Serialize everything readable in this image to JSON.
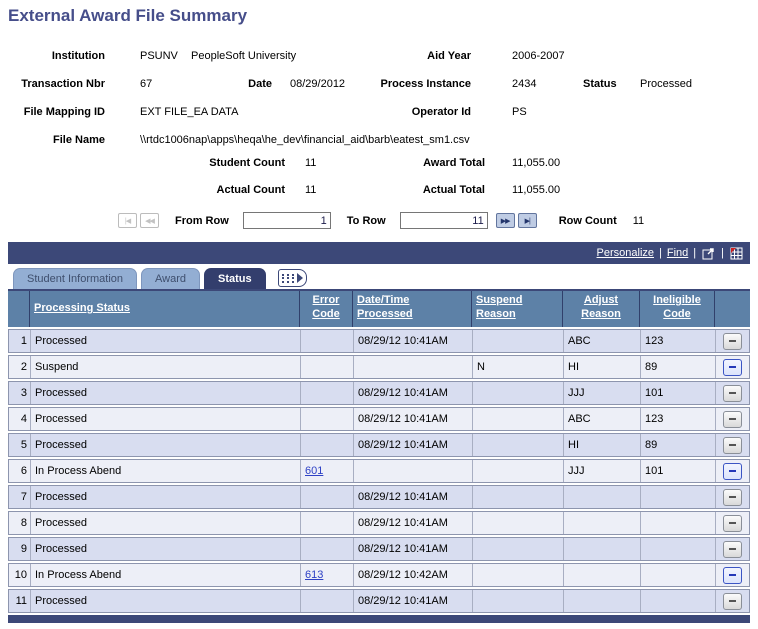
{
  "page": {
    "title": "External Award File Summary"
  },
  "header_fields": {
    "institution_label": "Institution",
    "institution_code": "PSUNV",
    "institution_name": "PeopleSoft University",
    "aid_year_label": "Aid Year",
    "aid_year": "2006-2007",
    "transaction_nbr_label": "Transaction Nbr",
    "transaction_nbr": "67",
    "date_label": "Date",
    "date": "08/29/2012",
    "process_instance_label": "Process Instance",
    "process_instance": "2434",
    "status_label": "Status",
    "status": "Processed",
    "file_mapping_id_label": "File Mapping ID",
    "file_mapping_id": "EXT FILE_EA DATA",
    "operator_id_label": "Operator Id",
    "operator_id": "PS",
    "file_name_label": "File Name",
    "file_name": "\\\\rtdc1006nap\\apps\\heqa\\he_dev\\financial_aid\\barb\\eatest_sm1.csv"
  },
  "totals": {
    "student_count_label": "Student Count",
    "student_count": "11",
    "award_total_label": "Award Total",
    "award_total": "11,055.00",
    "actual_count_label": "Actual Count",
    "actual_count": "11",
    "actual_total_label": "Actual Total",
    "actual_total": "11,055.00"
  },
  "pagination": {
    "from_row_label": "From Row",
    "from_row_value": "1",
    "to_row_label": "To Row",
    "to_row_value": "11",
    "row_count_label": "Row Count",
    "row_count": "11"
  },
  "icons": {
    "first_page_glyph": "|◀",
    "previous_page_glyph": "◀◀",
    "next_page_glyph": "▶▶",
    "last_page_glyph": "▶|",
    "toolbar_separator": "|",
    "delete_row": "minus-icon",
    "view_popup": "open-in-new-window-icon",
    "download_grid": "download-grid-icon",
    "show_all_columns": "show-all-columns-icon"
  },
  "grid": {
    "toolbar": {
      "personalize": "Personalize",
      "find": "Find"
    },
    "tabs": [
      {
        "label": "Student Information",
        "active": false
      },
      {
        "label": "Award",
        "active": false
      },
      {
        "label": "Status",
        "active": true
      }
    ],
    "columns": [
      "Processing Status",
      "Error Code",
      "Date/Time Processed",
      "Suspend Reason",
      "Adjust Reason",
      "Ineligible Code"
    ],
    "rows": [
      {
        "num": "1",
        "processing_status": "Processed",
        "error_code": "",
        "date_time": "08/29/12 10:41AM",
        "suspend_reason": "",
        "adjust_reason": "ABC",
        "ineligible_code": "123",
        "highlight": false
      },
      {
        "num": "2",
        "processing_status": "Suspend",
        "error_code": "",
        "date_time": "",
        "suspend_reason": "N",
        "adjust_reason": "HI",
        "ineligible_code": "89",
        "highlight": true
      },
      {
        "num": "3",
        "processing_status": "Processed",
        "error_code": "",
        "date_time": "08/29/12 10:41AM",
        "suspend_reason": "",
        "adjust_reason": "JJJ",
        "ineligible_code": "101",
        "highlight": false
      },
      {
        "num": "4",
        "processing_status": "Processed",
        "error_code": "",
        "date_time": "08/29/12 10:41AM",
        "suspend_reason": "",
        "adjust_reason": "ABC",
        "ineligible_code": "123",
        "highlight": false
      },
      {
        "num": "5",
        "processing_status": "Processed",
        "error_code": "",
        "date_time": "08/29/12 10:41AM",
        "suspend_reason": "",
        "adjust_reason": "HI",
        "ineligible_code": "89",
        "highlight": false
      },
      {
        "num": "6",
        "processing_status": "In Process Abend",
        "error_code": "601",
        "date_time": "",
        "suspend_reason": "",
        "adjust_reason": "JJJ",
        "ineligible_code": "101",
        "highlight": true
      },
      {
        "num": "7",
        "processing_status": "Processed",
        "error_code": "",
        "date_time": "08/29/12 10:41AM",
        "suspend_reason": "",
        "adjust_reason": "",
        "ineligible_code": "",
        "highlight": false
      },
      {
        "num": "8",
        "processing_status": "Processed",
        "error_code": "",
        "date_time": "08/29/12 10:41AM",
        "suspend_reason": "",
        "adjust_reason": "",
        "ineligible_code": "",
        "highlight": false
      },
      {
        "num": "9",
        "processing_status": "Processed",
        "error_code": "",
        "date_time": "08/29/12 10:41AM",
        "suspend_reason": "",
        "adjust_reason": "",
        "ineligible_code": "",
        "highlight": false
      },
      {
        "num": "10",
        "processing_status": "In Process Abend",
        "error_code": "613",
        "date_time": "08/29/12 10:42AM",
        "suspend_reason": "",
        "adjust_reason": "",
        "ineligible_code": "",
        "highlight": true
      },
      {
        "num": "11",
        "processing_status": "Processed",
        "error_code": "",
        "date_time": "08/29/12 10:41AM",
        "suspend_reason": "",
        "adjust_reason": "",
        "ineligible_code": "",
        "highlight": false
      }
    ]
  }
}
